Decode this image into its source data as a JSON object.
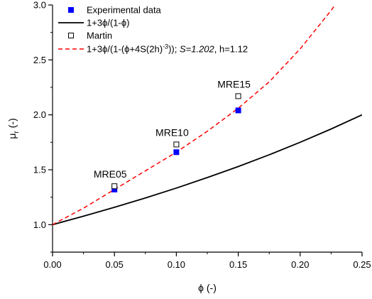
{
  "chart_data": {
    "type": "scatter",
    "xlabel": "ϕ (-)",
    "ylabel_main": "μ",
    "ylabel_sub": "r",
    "ylabel_unit": " (-)",
    "xlim": [
      0,
      0.25
    ],
    "ylim": [
      0.75,
      3.0
    ],
    "x_ticks": [
      0.0,
      0.05,
      0.1,
      0.15,
      0.2,
      0.25
    ],
    "x_tick_labels": [
      "0.00",
      "0.05",
      "0.10",
      "0.15",
      "0.20",
      "0.25"
    ],
    "y_ticks": [
      1.0,
      1.5,
      2.0,
      2.5,
      3.0
    ],
    "y_tick_labels": [
      "1.0",
      "1.5",
      "2.0",
      "2.5",
      "3.0"
    ],
    "grid": false,
    "legend_position": "top-left",
    "series": [
      {
        "name": "Experimental data",
        "kind": "scatter",
        "marker": "filled-square",
        "color": "#0000ff",
        "x": [
          0.05,
          0.1,
          0.15
        ],
        "y": [
          1.32,
          1.66,
          2.04
        ]
      },
      {
        "name": "1+3ϕ/(1-ϕ)",
        "kind": "line",
        "style": "solid",
        "color": "#000000",
        "x": [
          0.0,
          0.025,
          0.05,
          0.075,
          0.1,
          0.125,
          0.15,
          0.175,
          0.2,
          0.225,
          0.25
        ],
        "y": [
          1.0,
          1.077,
          1.158,
          1.243,
          1.333,
          1.429,
          1.529,
          1.636,
          1.75,
          1.871,
          2.0
        ]
      },
      {
        "name": "Martin",
        "kind": "scatter",
        "marker": "open-square",
        "color": "#000000",
        "x": [
          0.05,
          0.1,
          0.15
        ],
        "y": [
          1.35,
          1.73,
          2.17
        ]
      },
      {
        "name_parts": [
          "1+3ϕ/(1-(ϕ+4S(2h)",
          "-3",
          ")); ",
          "S=1.202",
          ", h=1.12"
        ],
        "kind": "line",
        "style": "dashed",
        "color": "#ff0000",
        "x": [
          0.0,
          0.025,
          0.05,
          0.075,
          0.1,
          0.125,
          0.15,
          0.175,
          0.2,
          0.225,
          0.23
        ],
        "y": [
          1.0,
          1.15,
          1.32,
          1.49,
          1.66,
          1.85,
          2.06,
          2.3,
          2.6,
          2.95,
          3.03
        ]
      }
    ],
    "annotations": [
      {
        "text": "MRE05",
        "x": 0.05,
        "y": 1.35
      },
      {
        "text": "MRE10",
        "x": 0.1,
        "y": 1.73
      },
      {
        "text": "MRE15",
        "x": 0.15,
        "y": 2.17
      }
    ]
  }
}
